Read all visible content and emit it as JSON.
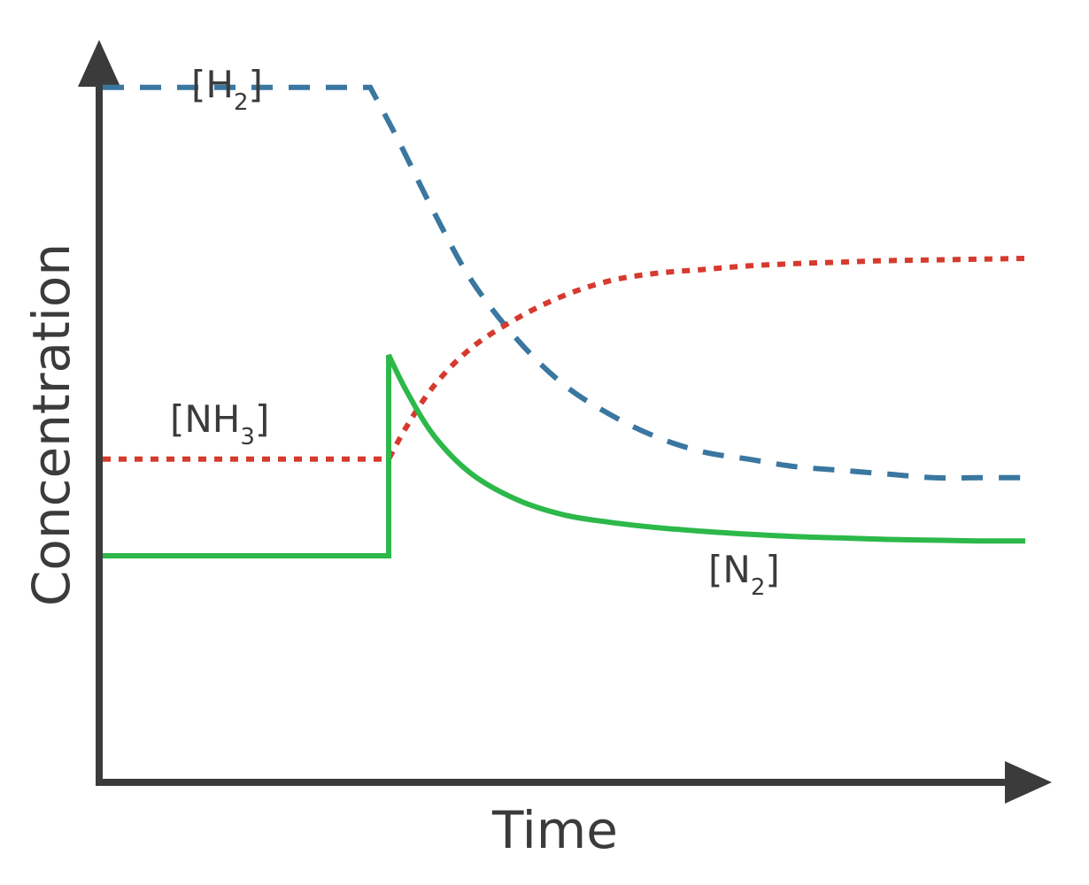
{
  "chart_data": {
    "type": "line",
    "title": "",
    "xlabel": "Time",
    "ylabel": "Concentration",
    "xlim": [
      0,
      10
    ],
    "ylim": [
      0,
      10
    ],
    "grid": false,
    "legend": "none",
    "series": [
      {
        "name": "H",
        "subscript": "2",
        "color": "#3a77a0",
        "style": "dashed",
        "x": [
          0,
          2.9,
          3.2,
          3.6,
          4.0,
          4.5,
          5.0,
          5.5,
          6.0,
          6.5,
          7.0,
          7.5,
          8.0,
          8.5,
          9.0,
          9.5,
          10.0
        ],
        "y": [
          9.3,
          9.3,
          8.6,
          7.6,
          6.7,
          5.9,
          5.3,
          4.9,
          4.6,
          4.4,
          4.3,
          4.2,
          4.15,
          4.1,
          4.05,
          4.05,
          4.05
        ]
      },
      {
        "name": "NH",
        "subscript": "3",
        "color": "#d63a2e",
        "style": "dotted",
        "x": [
          0,
          3.1,
          3.3,
          3.6,
          4.0,
          4.5,
          5.0,
          5.5,
          6.0,
          6.5,
          7.0,
          7.5,
          8.0,
          8.5,
          9.0,
          9.5,
          10.0
        ],
        "y": [
          4.3,
          4.3,
          4.75,
          5.3,
          5.8,
          6.2,
          6.5,
          6.7,
          6.8,
          6.85,
          6.9,
          6.93,
          6.95,
          6.97,
          6.98,
          6.99,
          7.0
        ]
      },
      {
        "name": "N",
        "subscript": "2",
        "color": "#2db84a",
        "style": "solid",
        "x": [
          0,
          3.1,
          3.1,
          3.3,
          3.6,
          4.0,
          4.5,
          5.0,
          5.5,
          6.0,
          6.5,
          7.0,
          7.5,
          8.0,
          8.5,
          9.0,
          9.5,
          10.0
        ],
        "y": [
          3.0,
          3.0,
          5.7,
          5.2,
          4.6,
          4.1,
          3.75,
          3.55,
          3.45,
          3.38,
          3.33,
          3.29,
          3.26,
          3.24,
          3.22,
          3.21,
          3.2,
          3.2
        ]
      }
    ]
  }
}
